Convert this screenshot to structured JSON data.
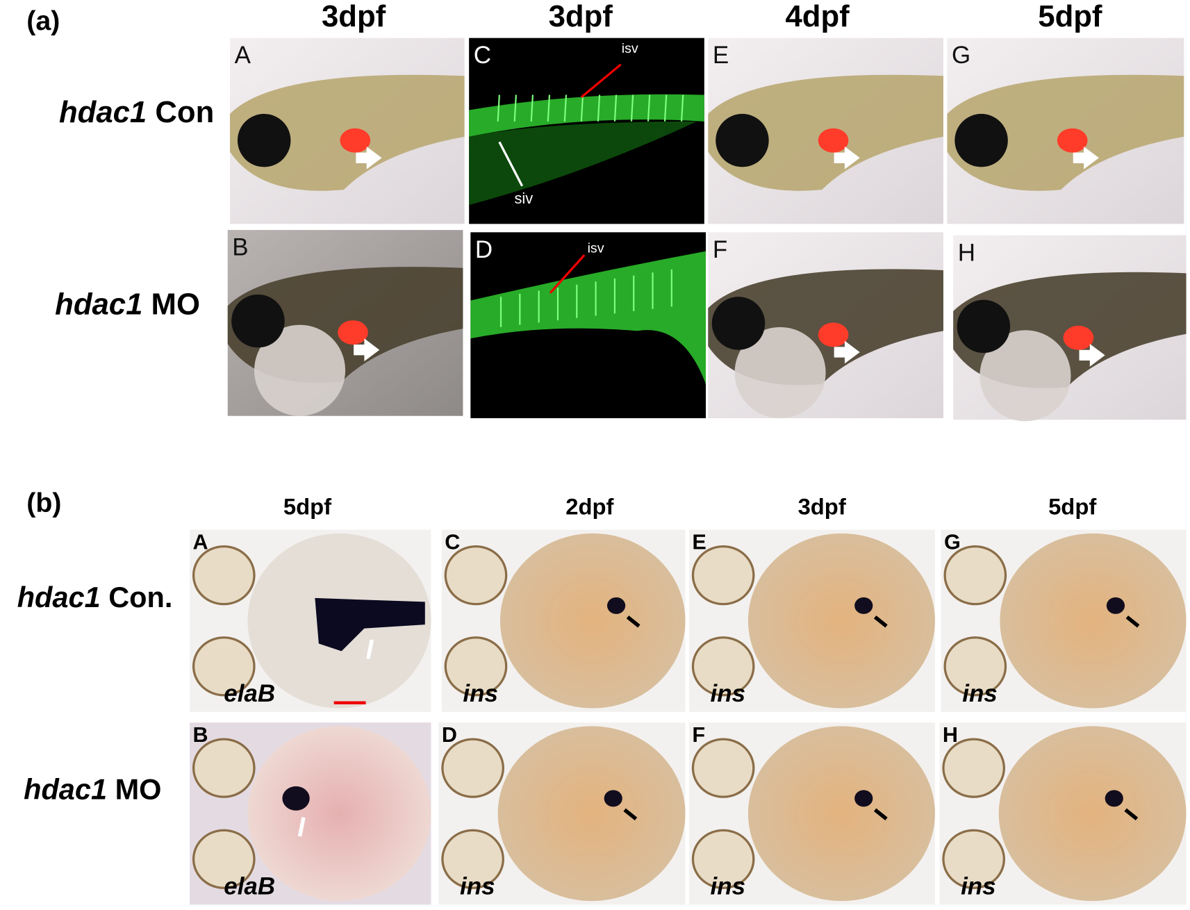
{
  "panel_a": {
    "label": "(a)",
    "columns": [
      "3dpf",
      "3dpf",
      "4dpf",
      "5dpf"
    ],
    "rows": [
      {
        "gene": "hdac1",
        "condition": "Con"
      },
      {
        "gene": "hdac1",
        "condition": "MO"
      }
    ],
    "panels": [
      {
        "letter": "A"
      },
      {
        "letter": "C",
        "annotations": [
          "isv",
          "siv"
        ]
      },
      {
        "letter": "E"
      },
      {
        "letter": "G"
      },
      {
        "letter": "B"
      },
      {
        "letter": "D",
        "annotations": [
          "isv"
        ]
      },
      {
        "letter": "F"
      },
      {
        "letter": "H"
      }
    ]
  },
  "panel_b": {
    "label": "(b)",
    "columns": [
      "5dpf",
      "2dpf",
      "3dpf",
      "5dpf"
    ],
    "rows": [
      {
        "gene": "hdac1",
        "condition": "Con."
      },
      {
        "gene": "hdac1",
        "condition": "MO"
      }
    ],
    "panels": [
      {
        "letter": "A",
        "probe": "elaB"
      },
      {
        "letter": "C",
        "probe": "ins"
      },
      {
        "letter": "E",
        "probe": "ins"
      },
      {
        "letter": "G",
        "probe": "ins"
      },
      {
        "letter": "B",
        "probe": "elaB"
      },
      {
        "letter": "D",
        "probe": "ins"
      },
      {
        "letter": "F",
        "probe": "ins"
      },
      {
        "letter": "H",
        "probe": "ins"
      }
    ]
  }
}
